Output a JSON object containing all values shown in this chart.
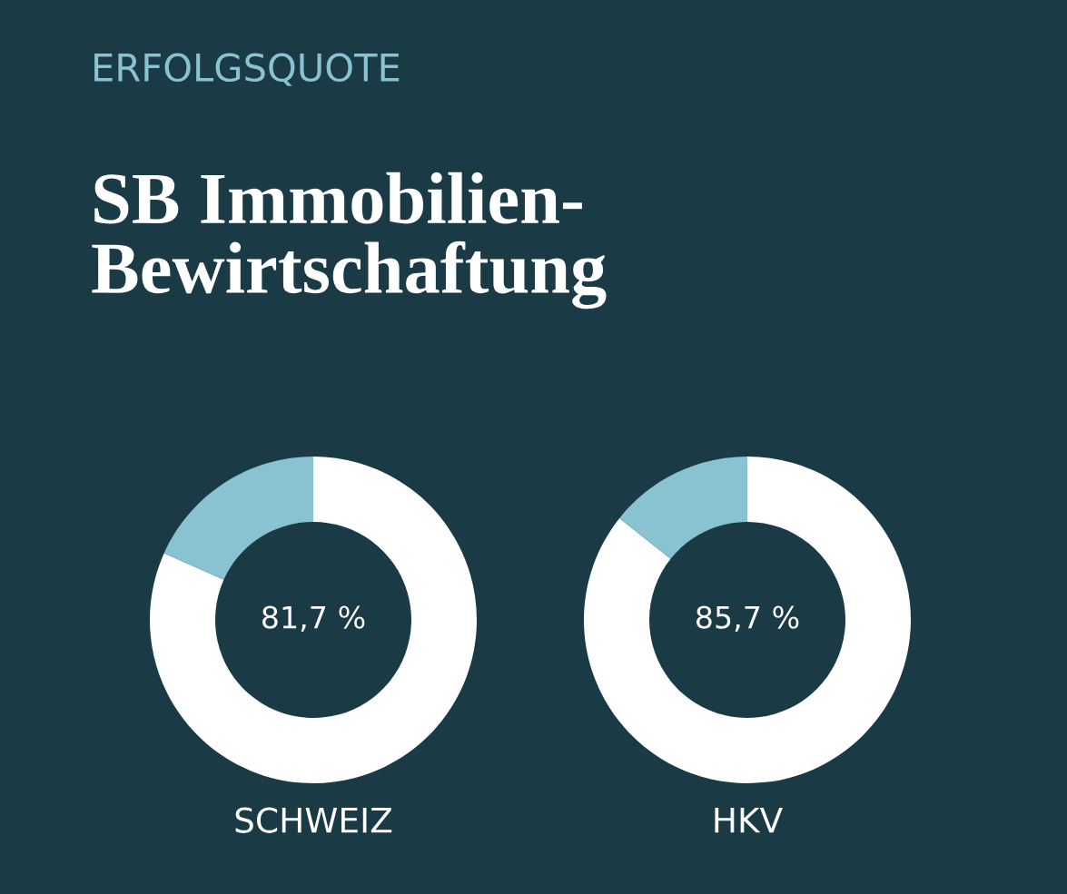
{
  "chart_data": [
    {
      "type": "donut",
      "subtitle": "ERFOLGSQUOTE",
      "title": "SB Immobilien-\nBewirtschaftung",
      "categories": [
        null,
        null
      ],
      "values": [
        81.7,
        18.3
      ],
      "colors": [
        "#ffffff",
        "#89c2d0"
      ],
      "annotations": [
        "81,7 %"
      ],
      "xlabel": "SCHWEIZ"
    },
    {
      "type": "donut",
      "categories": [
        null,
        null
      ],
      "values": [
        85.7,
        14.3
      ],
      "colors": [
        "#ffffff",
        "#89c2d0"
      ],
      "annotations": [
        "85,7 %"
      ],
      "xlabel": "HKV"
    }
  ]
}
